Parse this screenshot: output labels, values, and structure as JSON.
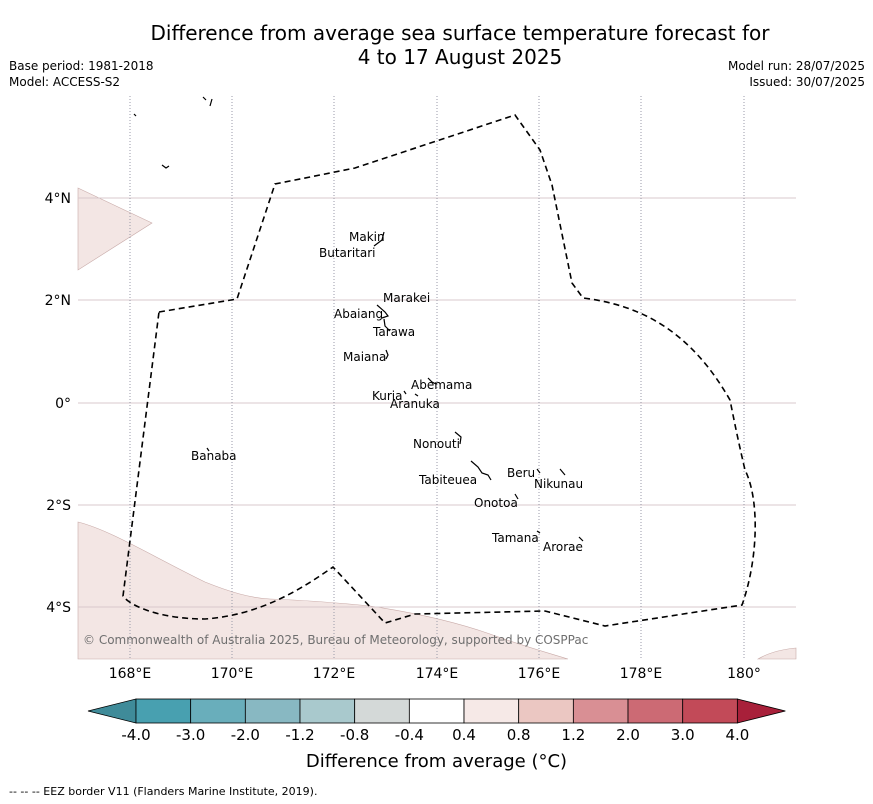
{
  "title_line1": "Difference from average sea surface temperature forecast for",
  "title_line2": "4 to 17 August 2025",
  "meta_left": {
    "base_period": "Base period: 1981-2018",
    "model": "Model: ACCESS-S2"
  },
  "meta_right": {
    "model_run": "Model run: 28/07/2025",
    "issued": "Issued: 30/07/2025"
  },
  "axes": {
    "lon_ticks": [
      "168°E",
      "170°E",
      "172°E",
      "174°E",
      "176°E",
      "178°E",
      "180°"
    ],
    "lat_ticks": [
      "4°N",
      "2°N",
      "0°",
      "2°S",
      "4°S"
    ]
  },
  "islands": [
    "Makin",
    "Butaritari",
    "Marakei",
    "Abaiang",
    "Tarawa",
    "Maiana",
    "Abemama",
    "Kuria",
    "Aranuka",
    "Banaba",
    "Nonouti",
    "Beru",
    "Tabiteuea",
    "Nikunau",
    "Onotoa",
    "Tamana",
    "Arorae"
  ],
  "copyright": "© Commonwealth of Australia 2025, Bureau of Meteorology, supported by COSPPac",
  "colorbar": {
    "ticks": [
      "-4.0",
      "-3.0",
      "-2.0",
      "-1.2",
      "-0.8",
      "-0.4",
      "0.4",
      "0.8",
      "1.2",
      "2.0",
      "3.0",
      "4.0"
    ],
    "colors": [
      "#3f8b99",
      "#48a0b0",
      "#69aebb",
      "#88b8c2",
      "#a9c9cd",
      "#d4d9d8",
      "#ffffff",
      "#f6e9e7",
      "#ebc7c2",
      "#d98f94",
      "#cc6a74",
      "#c24a58",
      "#a8203a"
    ],
    "label": "Difference from average (°C)"
  },
  "map_colors": {
    "land_shade": "#f3e6e4",
    "grid_lat": "#d8c8cc",
    "grid_lon": "#9a9aa8",
    "eez": "#000000"
  },
  "footer": "--  --  -- EEZ border V11 (Flanders Marine Institute, 2019)."
}
